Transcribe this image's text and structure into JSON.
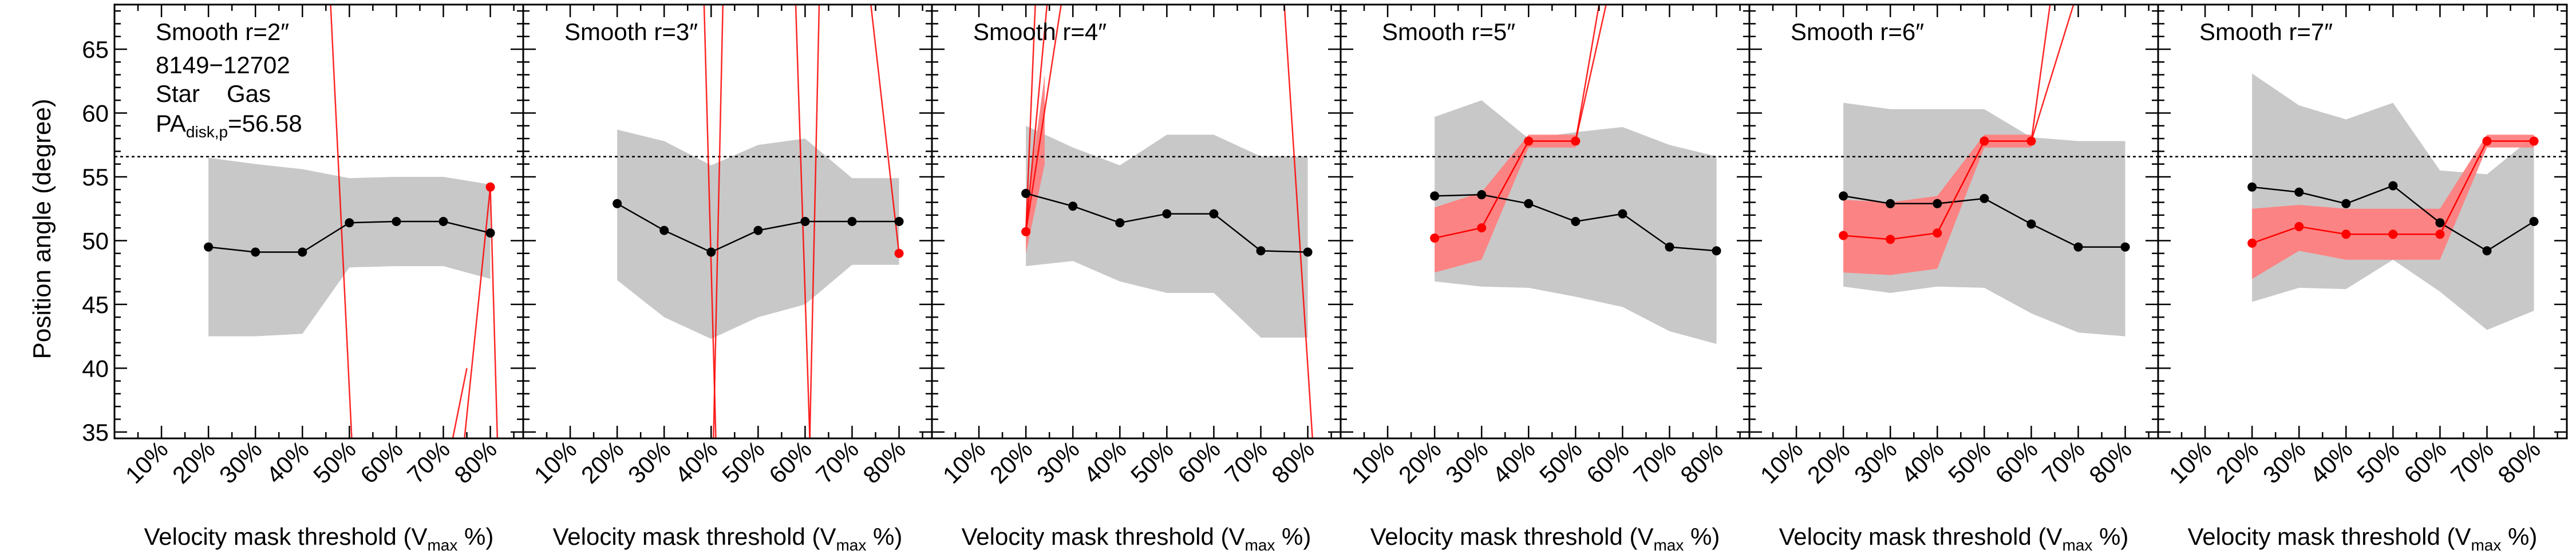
{
  "figure": {
    "ylabel": "Position angle (degree)",
    "xlabel_prefix": "Velocity mask threshold (V",
    "xlabel_sub": "max",
    "xlabel_suffix": " %)",
    "info": {
      "galaxy_id": "8149−12702",
      "star_label": "Star",
      "gas_label": "Gas",
      "pa_prefix": "PA",
      "pa_sub": "disk,p",
      "pa_suffix": "=56.58"
    },
    "colors": {
      "star": "#000000",
      "gas": "#ff0000",
      "star_band": "#c8c8c8",
      "gas_band": "#ff7f7f"
    }
  },
  "chart_data": [
    {
      "type": "line",
      "title": "Smooth r=2″",
      "x_tick_labels": [
        "10%",
        "20%",
        "30%",
        "40%",
        "50%",
        "60%",
        "70%",
        "80%"
      ],
      "x_ticks": [
        10,
        20,
        30,
        40,
        50,
        60,
        70,
        80
      ],
      "xlim": [
        0,
        87
      ],
      "ylim": [
        34.5,
        68.5
      ],
      "y_ticks": [
        35,
        40,
        45,
        50,
        55,
        60,
        65
      ],
      "reference_line": 56.58,
      "star": {
        "x": [
          20,
          30,
          40,
          50,
          60,
          70,
          80
        ],
        "y": [
          49.5,
          49.1,
          49.1,
          51.4,
          51.5,
          51.5,
          50.6
        ],
        "low": [
          42.5,
          42.5,
          42.7,
          47.9,
          48.0,
          48.0,
          47.0
        ],
        "high": [
          56.5,
          56.0,
          55.6,
          54.9,
          55.0,
          55.0,
          54.4
        ]
      },
      "gas": {
        "x": [
          80
        ],
        "y": [
          54.2
        ]
      },
      "gas_lines": [
        {
          "x": [
            46.0,
            50.5
          ],
          "y": [
            68.5,
            34.5
          ]
        },
        {
          "x": [
            72.0,
            75.0
          ],
          "y": [
            34.5,
            40.0
          ]
        },
        {
          "x": [
            74.5,
            80.0
          ],
          "y": [
            34.5,
            54.2
          ]
        },
        {
          "x": [
            80.0,
            81.5
          ],
          "y": [
            54.2,
            34.5
          ]
        }
      ]
    },
    {
      "type": "line",
      "title": "Smooth r=3″",
      "x_tick_labels": [
        "10%",
        "20%",
        "30%",
        "40%",
        "50%",
        "60%",
        "70%",
        "80%"
      ],
      "x_ticks": [
        10,
        20,
        30,
        40,
        50,
        60,
        70,
        80
      ],
      "xlim": [
        0,
        87
      ],
      "ylim": [
        34.5,
        68.5
      ],
      "y_ticks": [
        35,
        40,
        45,
        50,
        55,
        60,
        65
      ],
      "reference_line": 56.58,
      "star": {
        "x": [
          20,
          30,
          40,
          50,
          60,
          70,
          80
        ],
        "y": [
          52.9,
          50.8,
          49.1,
          50.8,
          51.5,
          51.5,
          51.5
        ],
        "low": [
          46.9,
          44.0,
          42.3,
          44.0,
          45.0,
          48.1,
          48.1
        ],
        "high": [
          58.7,
          57.8,
          55.9,
          57.5,
          58.0,
          54.9,
          54.9
        ]
      },
      "gas": {
        "x": [
          80
        ],
        "y": [
          49.0
        ]
      },
      "gas_lines": [
        {
          "x": [
            38.5,
            41.0
          ],
          "y": [
            68.5,
            34.5
          ]
        },
        {
          "x": [
            40.5,
            42.5
          ],
          "y": [
            34.5,
            68.5
          ]
        },
        {
          "x": [
            58.0,
            61.0
          ],
          "y": [
            68.5,
            34.5
          ]
        },
        {
          "x": [
            61.0,
            63.0
          ],
          "y": [
            34.5,
            68.5
          ]
        },
        {
          "x": [
            74.0,
            80.0
          ],
          "y": [
            68.5,
            49.0
          ]
        }
      ]
    },
    {
      "type": "line",
      "title": "Smooth r=4″",
      "x_tick_labels": [
        "10%",
        "20%",
        "30%",
        "40%",
        "50%",
        "60%",
        "70%",
        "80%"
      ],
      "x_ticks": [
        10,
        20,
        30,
        40,
        50,
        60,
        70,
        80
      ],
      "xlim": [
        0,
        87
      ],
      "ylim": [
        34.5,
        68.5
      ],
      "y_ticks": [
        35,
        40,
        45,
        50,
        55,
        60,
        65
      ],
      "reference_line": 56.58,
      "star": {
        "x": [
          20,
          30,
          40,
          50,
          60,
          70,
          80
        ],
        "y": [
          53.7,
          52.7,
          51.4,
          52.1,
          52.1,
          49.2,
          49.1
        ],
        "low": [
          48.0,
          48.4,
          46.8,
          45.9,
          45.9,
          42.4,
          42.4
        ],
        "high": [
          59.0,
          57.3,
          55.9,
          58.3,
          58.3,
          56.6,
          56.6
        ]
      },
      "gas": {
        "x": [
          20
        ],
        "y": [
          50.7
        ]
      },
      "gas_band": {
        "x": [
          20,
          24
        ],
        "low": [
          49.0,
          56.0
        ],
        "high": [
          52.0,
          63.0
        ]
      },
      "gas_lines": [
        {
          "x": [
            20.0,
            22.0
          ],
          "y": [
            50.7,
            68.5
          ]
        },
        {
          "x": [
            20.0,
            24.5
          ],
          "y": [
            50.7,
            68.5
          ]
        },
        {
          "x": [
            20.0,
            27.5
          ],
          "y": [
            50.7,
            68.5
          ]
        },
        {
          "x": [
            75.0,
            81.0
          ],
          "y": [
            68.5,
            34.5
          ]
        }
      ]
    },
    {
      "type": "line",
      "title": "Smooth r=5″",
      "x_tick_labels": [
        "10%",
        "20%",
        "30%",
        "40%",
        "50%",
        "60%",
        "70%",
        "80%"
      ],
      "x_ticks": [
        10,
        20,
        30,
        40,
        50,
        60,
        70,
        80
      ],
      "xlim": [
        0,
        87
      ],
      "ylim": [
        34.5,
        68.5
      ],
      "y_ticks": [
        35,
        40,
        45,
        50,
        55,
        60,
        65
      ],
      "reference_line": 56.58,
      "star": {
        "x": [
          20,
          30,
          40,
          50,
          60,
          70,
          80
        ],
        "y": [
          53.5,
          53.6,
          52.9,
          51.5,
          52.1,
          49.5,
          49.2
        ],
        "low": [
          46.8,
          46.4,
          46.3,
          45.6,
          44.8,
          42.9,
          41.9
        ],
        "high": [
          59.7,
          61.0,
          58.0,
          58.5,
          58.9,
          57.5,
          56.6
        ]
      },
      "gas": {
        "x": [
          20,
          30,
          40,
          50
        ],
        "y": [
          50.2,
          51.0,
          57.8,
          57.8
        ]
      },
      "gas_band": {
        "x": [
          20,
          30,
          40,
          50
        ],
        "low": [
          47.5,
          48.5,
          57.3,
          57.3
        ],
        "high": [
          52.6,
          53.8,
          58.3,
          58.3
        ]
      },
      "gas_lines": [
        {
          "x": [
            50.0,
            55.0
          ],
          "y": [
            57.8,
            68.5
          ]
        },
        {
          "x": [
            50.0,
            56.5
          ],
          "y": [
            57.8,
            68.5
          ]
        }
      ]
    },
    {
      "type": "line",
      "title": "Smooth r=6″",
      "x_tick_labels": [
        "10%",
        "20%",
        "30%",
        "40%",
        "50%",
        "60%",
        "70%",
        "80%"
      ],
      "x_ticks": [
        10,
        20,
        30,
        40,
        50,
        60,
        70,
        80
      ],
      "xlim": [
        0,
        87
      ],
      "ylim": [
        34.5,
        68.5
      ],
      "y_ticks": [
        35,
        40,
        45,
        50,
        55,
        60,
        65
      ],
      "reference_line": 56.58,
      "star": {
        "x": [
          20,
          30,
          40,
          50,
          60,
          70,
          80
        ],
        "y": [
          53.5,
          52.9,
          52.9,
          53.3,
          51.3,
          49.5,
          49.5
        ],
        "low": [
          46.4,
          45.9,
          46.4,
          46.3,
          44.3,
          42.8,
          42.5
        ],
        "high": [
          60.8,
          60.3,
          60.3,
          60.3,
          58.1,
          57.8,
          57.8
        ]
      },
      "gas": {
        "x": [
          20,
          30,
          40,
          50,
          60
        ],
        "y": [
          50.4,
          50.1,
          50.6,
          57.8,
          57.8
        ]
      },
      "gas_band": {
        "x": [
          20,
          30,
          40,
          50,
          60
        ],
        "low": [
          47.5,
          47.3,
          47.8,
          57.3,
          57.3
        ],
        "high": [
          53.2,
          53.0,
          53.5,
          58.3,
          58.3
        ]
      },
      "gas_lines": [
        {
          "x": [
            60.0,
            64.0
          ],
          "y": [
            57.8,
            68.5
          ]
        },
        {
          "x": [
            60.0,
            69.0
          ],
          "y": [
            57.8,
            68.5
          ]
        }
      ]
    },
    {
      "type": "line",
      "title": "Smooth r=7″",
      "x_tick_labels": [
        "10%",
        "20%",
        "30%",
        "40%",
        "50%",
        "60%",
        "70%",
        "80%"
      ],
      "x_ticks": [
        10,
        20,
        30,
        40,
        50,
        60,
        70,
        80
      ],
      "xlim": [
        0,
        87
      ],
      "ylim": [
        34.5,
        68.5
      ],
      "y_ticks": [
        35,
        40,
        45,
        50,
        55,
        60,
        65
      ],
      "reference_line": 56.58,
      "star": {
        "x": [
          20,
          30,
          40,
          50,
          60,
          70,
          80
        ],
        "y": [
          54.2,
          53.8,
          52.9,
          54.3,
          51.4,
          49.2,
          51.5
        ],
        "low": [
          45.2,
          46.3,
          46.2,
          48.5,
          46.0,
          43.0,
          44.5
        ],
        "high": [
          63.1,
          60.6,
          59.5,
          60.8,
          55.5,
          55.2,
          58.2
        ]
      },
      "gas": {
        "x": [
          20,
          30,
          40,
          50,
          60,
          70,
          80
        ],
        "y": [
          49.8,
          51.1,
          50.5,
          50.5,
          50.5,
          57.8,
          57.8
        ]
      },
      "gas_band": {
        "x": [
          20,
          30,
          40,
          50,
          60,
          70,
          80
        ],
        "low": [
          47.0,
          49.2,
          48.5,
          48.5,
          48.5,
          57.3,
          57.3
        ],
        "high": [
          52.5,
          52.8,
          52.5,
          52.5,
          52.5,
          58.3,
          58.3
        ]
      },
      "gas_lines": []
    }
  ]
}
